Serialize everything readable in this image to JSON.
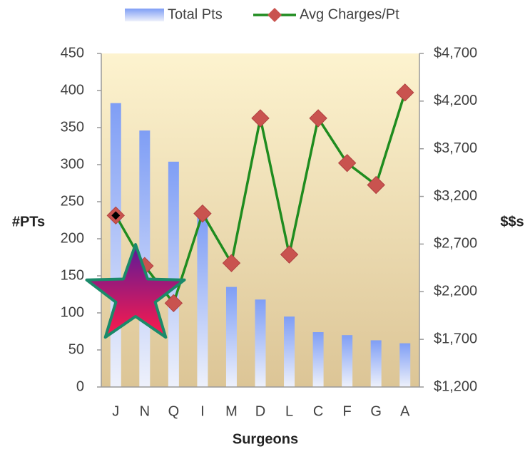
{
  "chart_data": {
    "type": "bar_line",
    "categories": [
      "J",
      "N",
      "Q",
      "I",
      "M",
      "D",
      "L",
      "C",
      "F",
      "G",
      "A"
    ],
    "series": [
      {
        "name": "Total Pts",
        "type": "bar",
        "color": "#7f9ef5",
        "values": [
          383,
          346,
          304,
          229,
          135,
          118,
          95,
          74,
          70,
          63,
          59
        ]
      },
      {
        "name": "Avg Charges/Pt",
        "type": "line",
        "axis": "y2",
        "color": "#1f8c1f",
        "marker_color": "#c9534f",
        "values": [
          3000,
          2470,
          2080,
          3020,
          2500,
          4020,
          2590,
          4020,
          3550,
          3320,
          4290
        ]
      }
    ],
    "ylim": [
      0,
      450
    ],
    "yticks": [
      0,
      50,
      100,
      150,
      200,
      250,
      300,
      350,
      400,
      450
    ],
    "y2lim": [
      1200,
      4700
    ],
    "y2ticks": [
      {
        "value": 1200,
        "label": "$1,200"
      },
      {
        "value": 1700,
        "label": "$1,700"
      },
      {
        "value": 2200,
        "label": "$2,200"
      },
      {
        "value": 2700,
        "label": "$2,700"
      },
      {
        "value": 3200,
        "label": "$3,200"
      },
      {
        "value": 3700,
        "label": "$3,700"
      },
      {
        "value": 4200,
        "label": "$4,200"
      },
      {
        "value": 4700,
        "label": "$4,700"
      }
    ],
    "xlabel": "Surgeons",
    "ylabel": "#PTs",
    "y2label": "$$s",
    "legend": "top"
  }
}
